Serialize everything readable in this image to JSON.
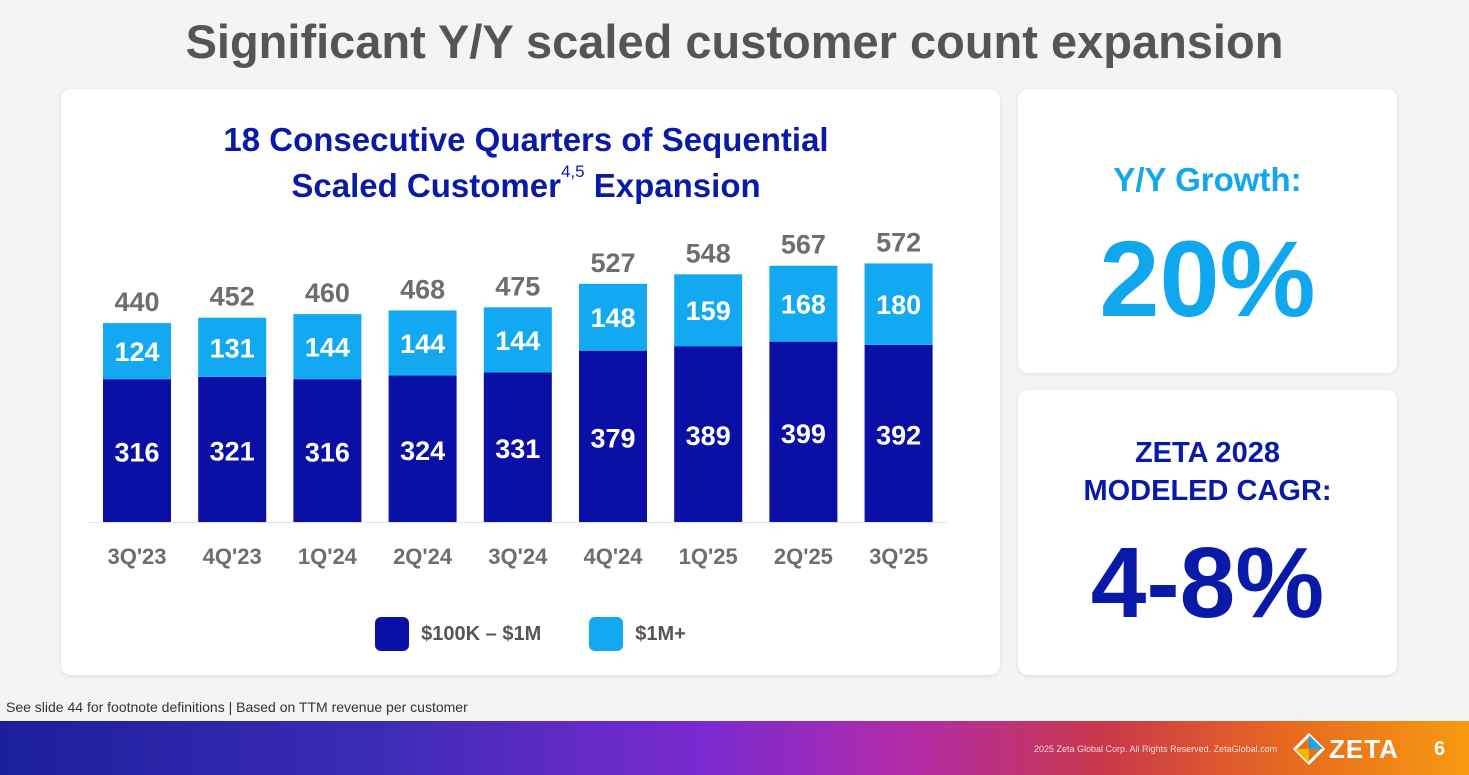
{
  "slide": {
    "title": "Significant Y/Y scaled customer count expansion",
    "footnote": "See slide 44 for footnote definitions  |  Based on TTM revenue per customer",
    "copyright": "2025 Zeta Global Corp. All Rights Reserved. ZetaGlobal.com",
    "logo_text": "ZETA",
    "page_number": "6"
  },
  "chart_data": {
    "type": "bar",
    "stacked": true,
    "title_line1": "18 Consecutive Quarters of Sequential",
    "title_line2": "Scaled Customer",
    "title_superscript": "4,5",
    "title_line2_end": " Expansion",
    "categories": [
      "3Q'23",
      "4Q'23",
      "1Q'24",
      "2Q'24",
      "3Q'24",
      "4Q'24",
      "1Q'25",
      "2Q'25",
      "3Q'25"
    ],
    "series": [
      {
        "name": "$100K – $1M",
        "values": [
          316,
          321,
          316,
          324,
          331,
          379,
          389,
          399,
          392
        ],
        "color": "#0a0fa5"
      },
      {
        "name": "$1M+",
        "values": [
          124,
          131,
          144,
          144,
          144,
          148,
          159,
          168,
          180
        ],
        "color": "#12a9f2"
      }
    ],
    "totals": [
      440,
      452,
      460,
      468,
      475,
      527,
      548,
      567,
      572
    ],
    "legend_position": "bottom",
    "grid": false
  },
  "metrics": {
    "growth_label": "Y/Y Growth:",
    "growth_value": "20%",
    "cagr_label": "ZETA 2028\nMODELED CAGR:",
    "cagr_value": "4-8%"
  },
  "colors": {
    "dark_blue": "#0a0fa5",
    "light_blue": "#12a9f2",
    "gray_text": "#6e6e6e"
  }
}
